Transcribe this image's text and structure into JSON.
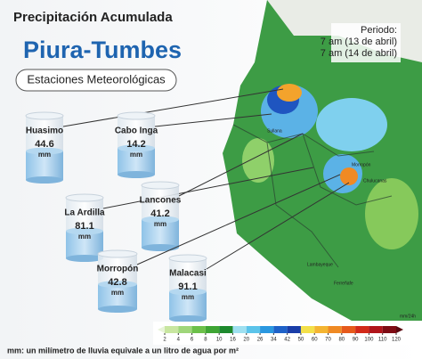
{
  "header": {
    "title": "Precipitación Acumulada",
    "region": "Piura-Tumbes",
    "section": "Estaciones Meteorológicas"
  },
  "period": {
    "label": "Periodo:",
    "start": "7 am (13 de abril)",
    "end": "7 am (14 de abril)"
  },
  "stations": [
    {
      "name": "Huasimo",
      "value": "44.6",
      "unit": "mm"
    },
    {
      "name": "Cabo Inga",
      "value": "14.2",
      "unit": "mm"
    },
    {
      "name": "La Ardilla",
      "value": "81.1",
      "unit": "mm"
    },
    {
      "name": "Lancones",
      "value": "41.2",
      "unit": "mm"
    },
    {
      "name": "Morropón",
      "value": "42.8",
      "unit": "mm"
    },
    {
      "name": "Malacasi",
      "value": "91.1",
      "unit": "mm"
    }
  ],
  "map_labels": [
    "Sullana",
    "Morropón",
    "Chulucanas",
    "Lambayeque",
    "Ferreñafe"
  ],
  "legend": {
    "unit": "mm/24h",
    "ticks": [
      2,
      4,
      6,
      8,
      10,
      16,
      20,
      26,
      34,
      42,
      50,
      60,
      70,
      80,
      90,
      100,
      110,
      120
    ],
    "colors": [
      "#c8e6a0",
      "#9fd67a",
      "#6cc04a",
      "#3fa535",
      "#1e8a2e",
      "#9fe0f0",
      "#5cc4ea",
      "#2b98e0",
      "#1f62c8",
      "#1a3ea8",
      "#f3e04a",
      "#f4b532",
      "#ef8a24",
      "#e65a1c",
      "#d22a1a",
      "#b0141a",
      "#7e0c14"
    ]
  },
  "footnote": "mm: un milímetro de lluvia equivale a un litro de agua por m²"
}
